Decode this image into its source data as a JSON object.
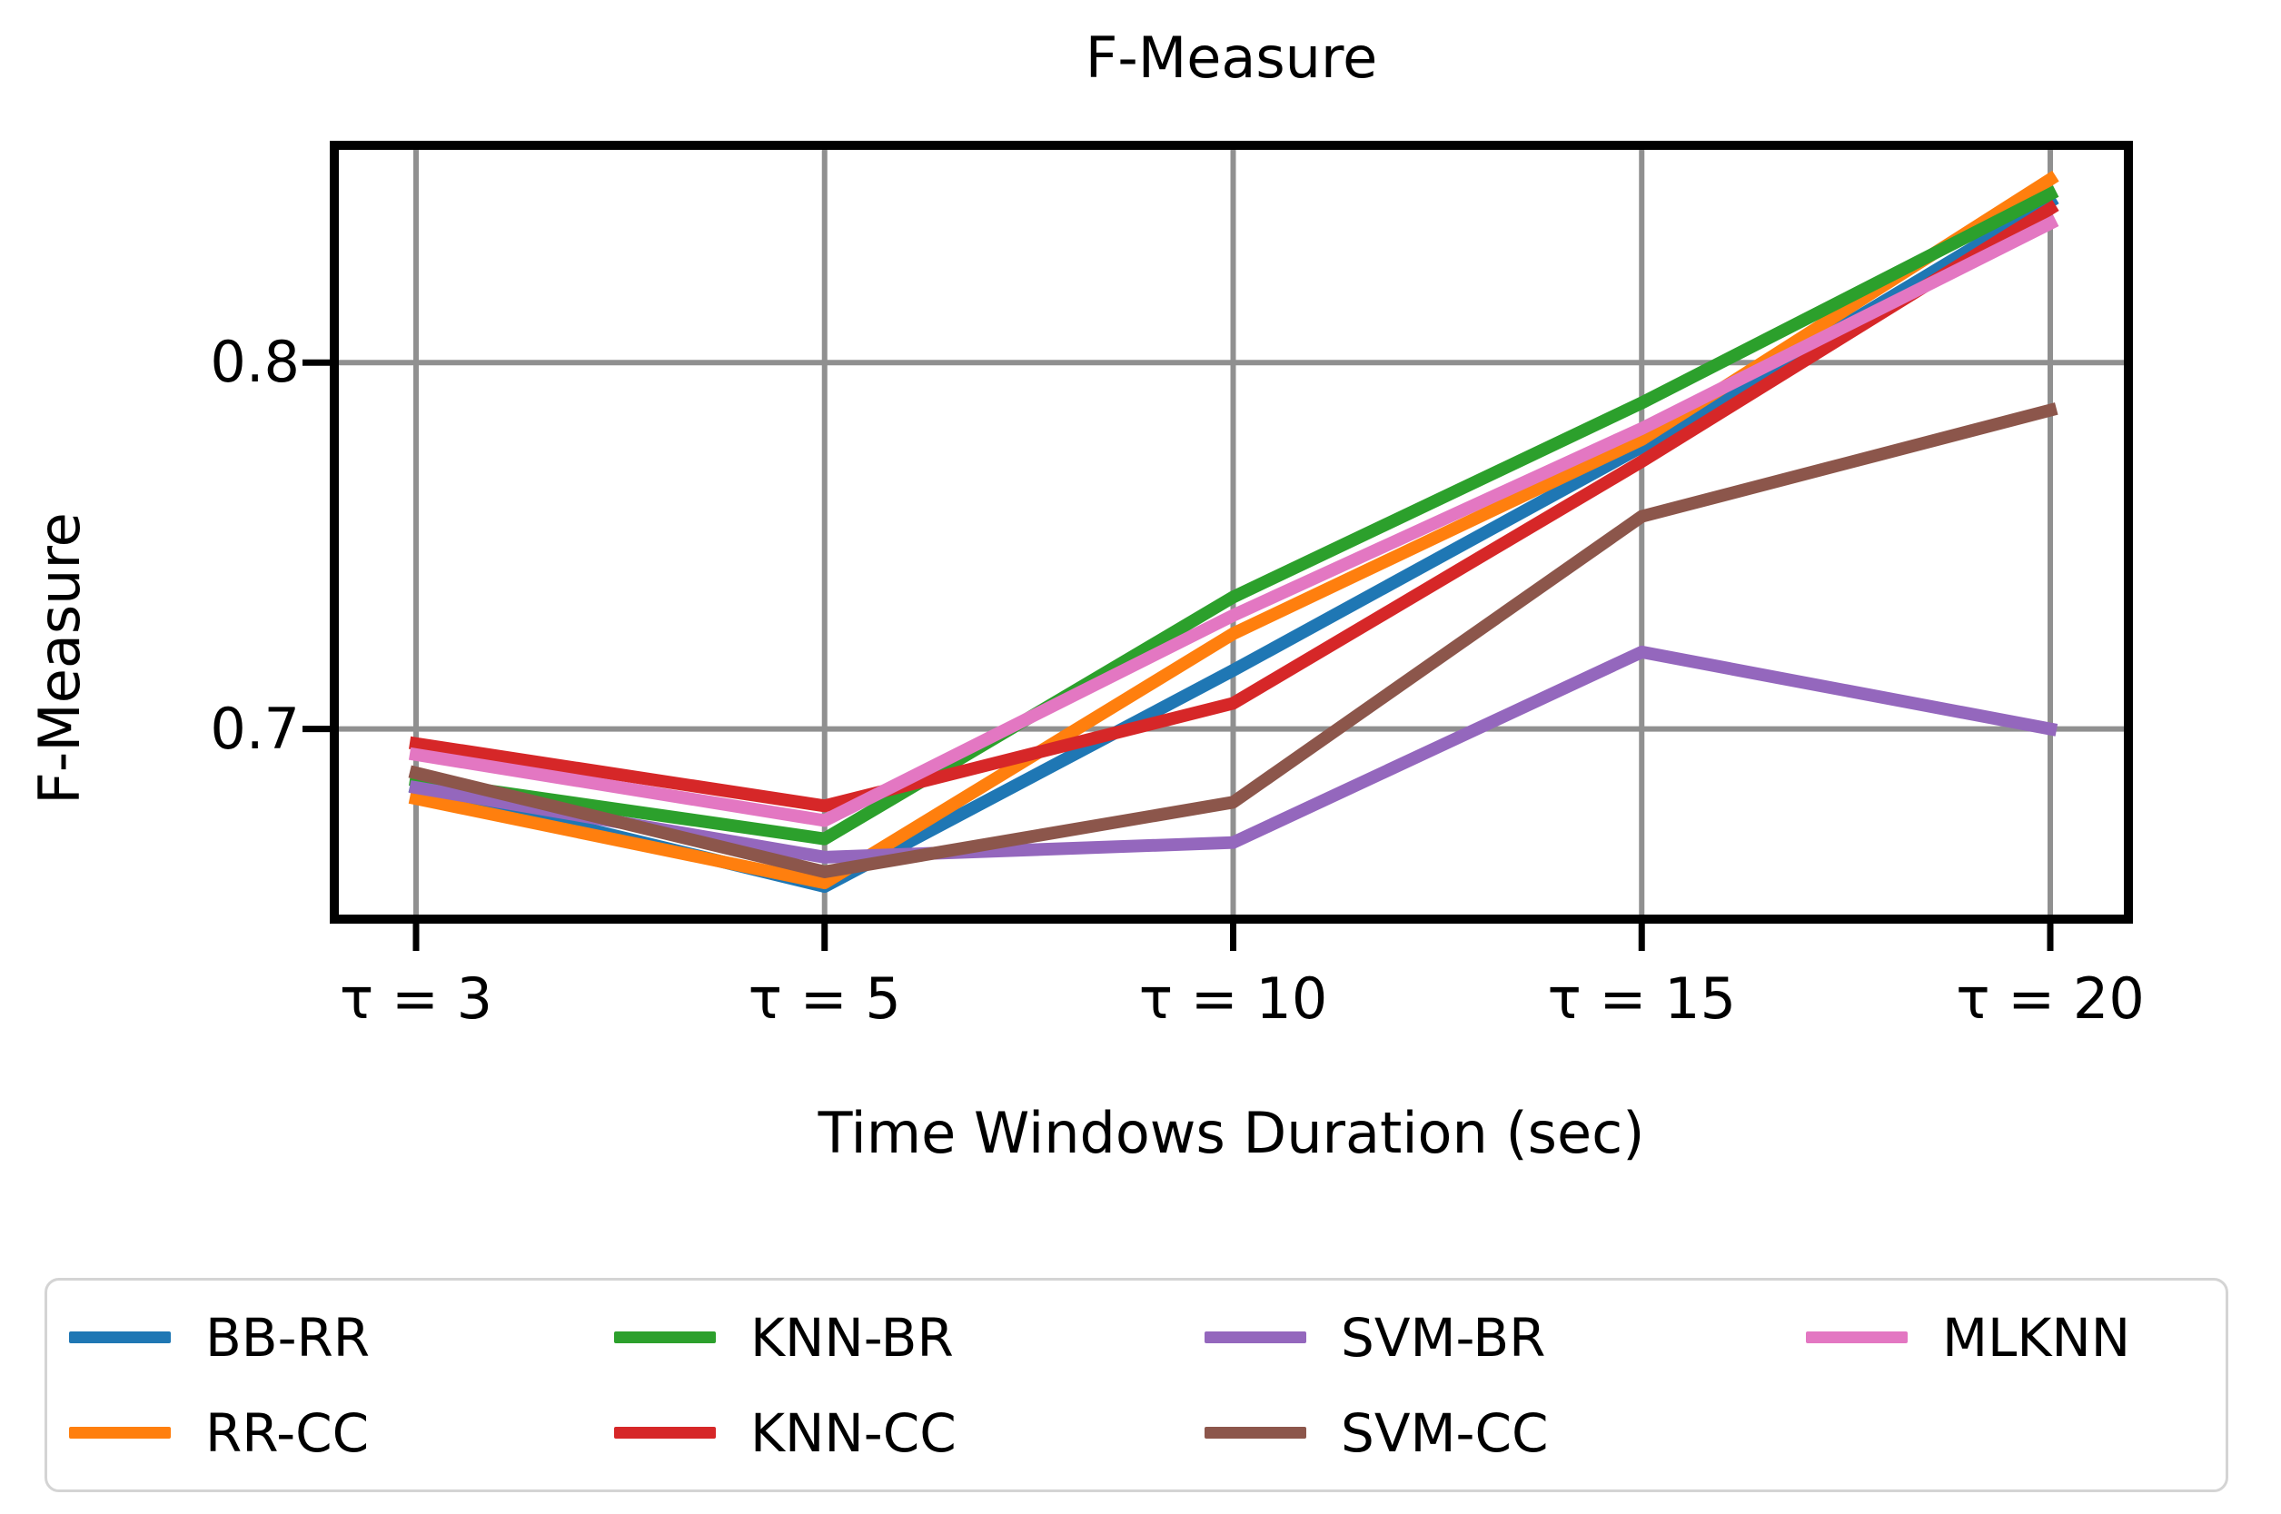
{
  "chart_data": {
    "type": "line",
    "title": "F-Measure",
    "xlabel": "Time Windows Duration (sec)",
    "ylabel": "F-Measure",
    "x_tick_labels": [
      "τ = 3",
      "τ = 5",
      "τ = 10",
      "τ = 15",
      "τ = 20"
    ],
    "x_values": [
      3,
      5,
      10,
      15,
      20
    ],
    "y_ticks": [
      {
        "label": "0.8",
        "value": 0.8
      },
      {
        "label": "0.7",
        "value": 0.7
      }
    ],
    "ylim": [
      0.648,
      0.859
    ],
    "grid": true,
    "grid_color": "#909090",
    "axis_color": "#000000",
    "legend_position": "bottom",
    "series": [
      {
        "name": "BB-RR",
        "color": "#1f77b4",
        "values": [
          0.684,
          0.657,
          0.716,
          0.777,
          0.844
        ]
      },
      {
        "name": "RR-CC",
        "color": "#ff7f0e",
        "values": [
          0.681,
          0.658,
          0.726,
          0.779,
          0.85
        ]
      },
      {
        "name": "KNN-BR",
        "color": "#2ca02c",
        "values": [
          0.686,
          0.67,
          0.736,
          0.789,
          0.846
        ]
      },
      {
        "name": "KNN-CC",
        "color": "#d62728",
        "values": [
          0.696,
          0.679,
          0.707,
          0.773,
          0.842
        ]
      },
      {
        "name": "SVM-BR",
        "color": "#9467bd",
        "values": [
          0.684,
          0.665,
          0.669,
          0.721,
          0.7
        ]
      },
      {
        "name": "SVM-CC",
        "color": "#8c564b",
        "values": [
          0.688,
          0.661,
          0.68,
          0.758,
          0.787
        ]
      },
      {
        "name": "MLKNN",
        "color": "#e377c2",
        "values": [
          0.693,
          0.675,
          0.731,
          0.782,
          0.838
        ]
      }
    ]
  }
}
